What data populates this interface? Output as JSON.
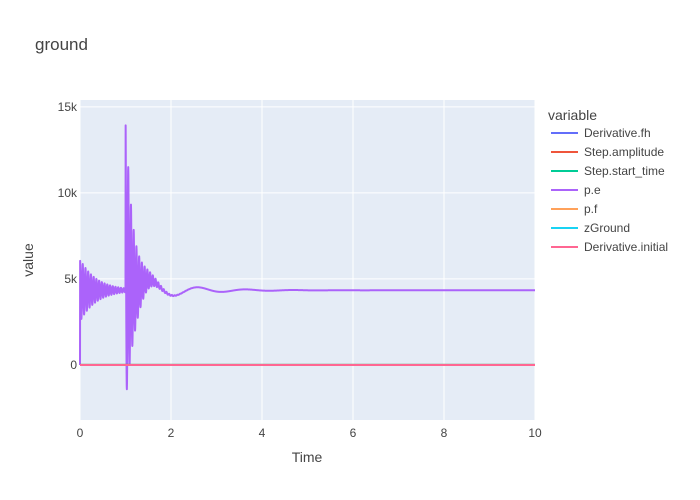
{
  "chart_data": {
    "type": "line",
    "title": "ground",
    "xlabel": "Time",
    "ylabel": "value",
    "xlim": [
      0,
      10
    ],
    "ylim": [
      -3200,
      15400
    ],
    "x_ticks": [
      0,
      2,
      4,
      6,
      8,
      10
    ],
    "x_tick_labels": [
      "0",
      "2",
      "4",
      "6",
      "8",
      "10"
    ],
    "y_ticks": [
      0,
      5000,
      10000,
      15000
    ],
    "y_tick_labels": [
      "0",
      "5k",
      "10k",
      "15k"
    ],
    "grid": true,
    "legend_title": "variable",
    "legend_position": "right",
    "plot_background": "#e5ecf6",
    "series": [
      {
        "name": "Derivative.fh",
        "color": "#636efa",
        "kind": "constant",
        "value": 0
      },
      {
        "name": "Step.amplitude",
        "color": "#ef553b",
        "kind": "constant",
        "value": 1
      },
      {
        "name": "Step.start_time",
        "color": "#00cc96",
        "kind": "constant",
        "value": 1
      },
      {
        "name": "p.e",
        "color": "#ab63fa",
        "kind": "oscillation",
        "value": 4340,
        "segments": [
          {
            "t_start": 0.0,
            "t_end": 1.0,
            "start_value": 0,
            "initial_peak": 6150,
            "initial_trough": 2050,
            "settle": 4340,
            "fast_period": 0.06,
            "fast_decay": 2.8
          },
          {
            "t_start": 1.0,
            "t_end": 10.0,
            "start_value": 4340,
            "peak": 14600,
            "trough": -2300,
            "settle": 4340,
            "fast_period": 0.06,
            "fast_decay": 5.5,
            "slow_amplitude": 1100,
            "slow_period": 1.05,
            "slow_decay": 1.15
          }
        ]
      },
      {
        "name": "p.f",
        "color": "#ffa15a",
        "kind": "constant",
        "value": 0
      },
      {
        "name": "zGround",
        "color": "#19d3f3",
        "kind": "constant",
        "value": 0
      },
      {
        "name": "Derivative.initial",
        "color": "#ff6692",
        "kind": "constant",
        "value": 0
      }
    ]
  }
}
